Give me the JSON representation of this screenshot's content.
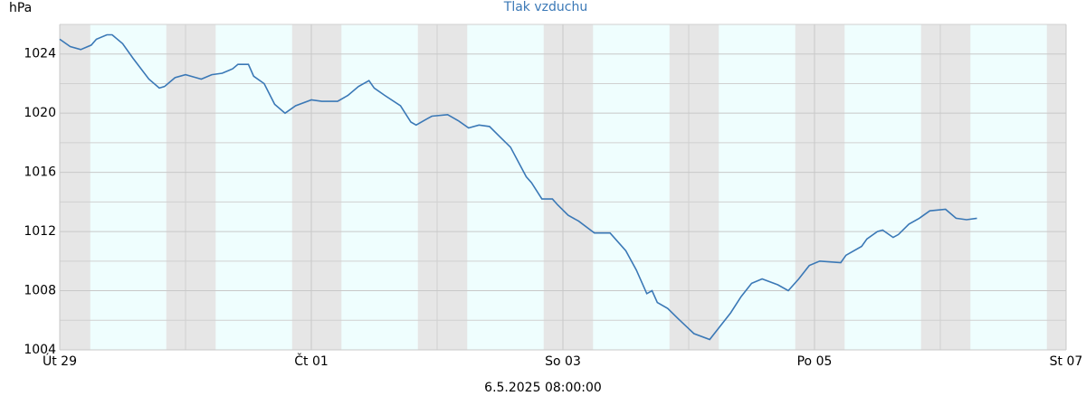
{
  "chart_data": {
    "type": "line",
    "title": "Tlak vzduchu",
    "y_label": "hPa",
    "footer": "6.5.2025 08:00:00",
    "x": [
      "2025-04-29T00:00",
      "2025-04-29T02:00",
      "2025-04-29T04:00",
      "2025-04-29T06:00",
      "2025-04-29T07:00",
      "2025-04-29T09:00",
      "2025-04-29T10:00",
      "2025-04-29T12:00",
      "2025-04-29T14:00",
      "2025-04-29T17:00",
      "2025-04-29T19:00",
      "2025-04-29T20:00",
      "2025-04-29T22:00",
      "2025-04-30T00:00",
      "2025-04-30T02:00",
      "2025-04-30T03:00",
      "2025-04-30T05:00",
      "2025-04-30T07:00",
      "2025-04-30T09:00",
      "2025-04-30T10:00",
      "2025-04-30T12:00",
      "2025-04-30T13:00",
      "2025-04-30T15:00",
      "2025-04-30T17:00",
      "2025-04-30T19:00",
      "2025-04-30T21:00",
      "2025-05-01T00:00",
      "2025-05-01T02:00",
      "2025-05-01T05:00",
      "2025-05-01T07:00",
      "2025-05-01T09:00",
      "2025-05-01T11:00",
      "2025-05-01T12:00",
      "2025-05-01T14:00",
      "2025-05-01T17:00",
      "2025-05-01T19:00",
      "2025-05-01T20:00",
      "2025-05-01T22:00",
      "2025-05-01T23:00",
      "2025-05-02T02:00",
      "2025-05-02T04:00",
      "2025-05-02T06:00",
      "2025-05-02T08:00",
      "2025-05-02T10:00",
      "2025-05-02T12:00",
      "2025-05-02T14:00",
      "2025-05-02T17:00",
      "2025-05-02T18:00",
      "2025-05-02T20:00",
      "2025-05-02T22:00",
      "2025-05-02T23:00",
      "2025-05-03T01:00",
      "2025-05-03T03:00",
      "2025-05-03T06:00",
      "2025-05-03T09:00",
      "2025-05-03T12:00",
      "2025-05-03T14:00",
      "2025-05-03T16:00",
      "2025-05-03T17:00",
      "2025-05-03T18:00",
      "2025-05-03T20:00",
      "2025-05-03T22:00",
      "2025-05-04T01:00",
      "2025-05-04T04:00",
      "2025-05-04T06:00",
      "2025-05-04T08:00",
      "2025-05-04T10:00",
      "2025-05-04T12:00",
      "2025-05-04T14:00",
      "2025-05-04T17:00",
      "2025-05-04T19:00",
      "2025-05-04T21:00",
      "2025-05-04T23:00",
      "2025-05-05T01:00",
      "2025-05-05T05:00",
      "2025-05-05T06:00",
      "2025-05-05T09:00",
      "2025-05-05T10:00",
      "2025-05-05T12:00",
      "2025-05-05T13:00",
      "2025-05-05T15:00",
      "2025-05-05T16:00",
      "2025-05-05T18:00",
      "2025-05-05T20:00",
      "2025-05-05T22:00",
      "2025-05-06T01:00",
      "2025-05-06T03:00",
      "2025-05-06T05:00",
      "2025-05-06T07:00"
    ],
    "series": [
      {
        "name": "Tlak vzduchu",
        "color": "#3a78b6",
        "values": [
          1025.0,
          1024.5,
          1024.3,
          1024.6,
          1025.0,
          1025.3,
          1025.3,
          1024.7,
          1023.7,
          1022.3,
          1021.7,
          1021.8,
          1022.4,
          1022.6,
          1022.4,
          1022.3,
          1022.6,
          1022.7,
          1023.0,
          1023.3,
          1023.3,
          1022.5,
          1022.0,
          1020.6,
          1020.0,
          1020.5,
          1020.9,
          1020.8,
          1020.8,
          1021.2,
          1021.8,
          1022.2,
          1021.7,
          1021.2,
          1020.5,
          1019.4,
          1019.2,
          1019.6,
          1019.8,
          1019.9,
          1019.5,
          1019.0,
          1019.2,
          1019.1,
          1018.4,
          1017.7,
          1015.7,
          1015.3,
          1014.2,
          1014.2,
          1013.8,
          1013.1,
          1012.7,
          1011.9,
          1011.9,
          1010.7,
          1009.4,
          1007.8,
          1008.0,
          1007.2,
          1006.8,
          1006.1,
          1005.1,
          1004.7,
          1005.6,
          1006.5,
          1007.6,
          1008.5,
          1008.8,
          1008.4,
          1008.0,
          1008.8,
          1009.7,
          1010.0,
          1009.9,
          1010.4,
          1011.0,
          1011.5,
          1012.0,
          1012.1,
          1011.6,
          1011.8,
          1012.5,
          1012.9,
          1013.4,
          1013.5,
          1012.9,
          1012.8,
          1012.9
        ]
      }
    ],
    "xlim": [
      "2025-04-29T00:00",
      "2025-05-07T00:00"
    ],
    "xticks": [
      {
        "value": "2025-04-29T00:00",
        "label": "Út 29"
      },
      {
        "value": "2025-05-01T00:00",
        "label": "Čt 01"
      },
      {
        "value": "2025-05-03T00:00",
        "label": "So 03"
      },
      {
        "value": "2025-05-05T00:00",
        "label": "Po 05"
      },
      {
        "value": "2025-05-07T00:00",
        "label": "St 07"
      }
    ],
    "x_minor_ticks": [
      "2025-04-30T00:00",
      "2025-05-02T00:00",
      "2025-05-04T00:00",
      "2025-05-06T00:00"
    ],
    "ylim": [
      1004,
      1026
    ],
    "yticks": [
      1004,
      1008,
      1012,
      1016,
      1020,
      1024
    ],
    "y_minor_ticks": [
      1006,
      1010,
      1014,
      1018,
      1022,
      1026
    ],
    "grid": true,
    "day_color": "#effefe",
    "night_color": "#e6e6e6",
    "night": [
      [
        "2025-04-29T00:00",
        "2025-04-29T05:50"
      ],
      [
        "2025-04-29T20:20",
        "2025-04-30T05:45"
      ],
      [
        "2025-04-30T20:20",
        "2025-05-01T05:45"
      ],
      [
        "2025-05-01T20:20",
        "2025-05-02T05:45"
      ],
      [
        "2025-05-02T20:20",
        "2025-05-03T05:45"
      ],
      [
        "2025-05-03T20:20",
        "2025-05-04T05:45"
      ],
      [
        "2025-05-04T20:20",
        "2025-05-05T05:45"
      ],
      [
        "2025-05-05T20:20",
        "2025-05-06T05:45"
      ],
      [
        "2025-05-06T20:20",
        "2025-05-07T00:00"
      ]
    ]
  }
}
